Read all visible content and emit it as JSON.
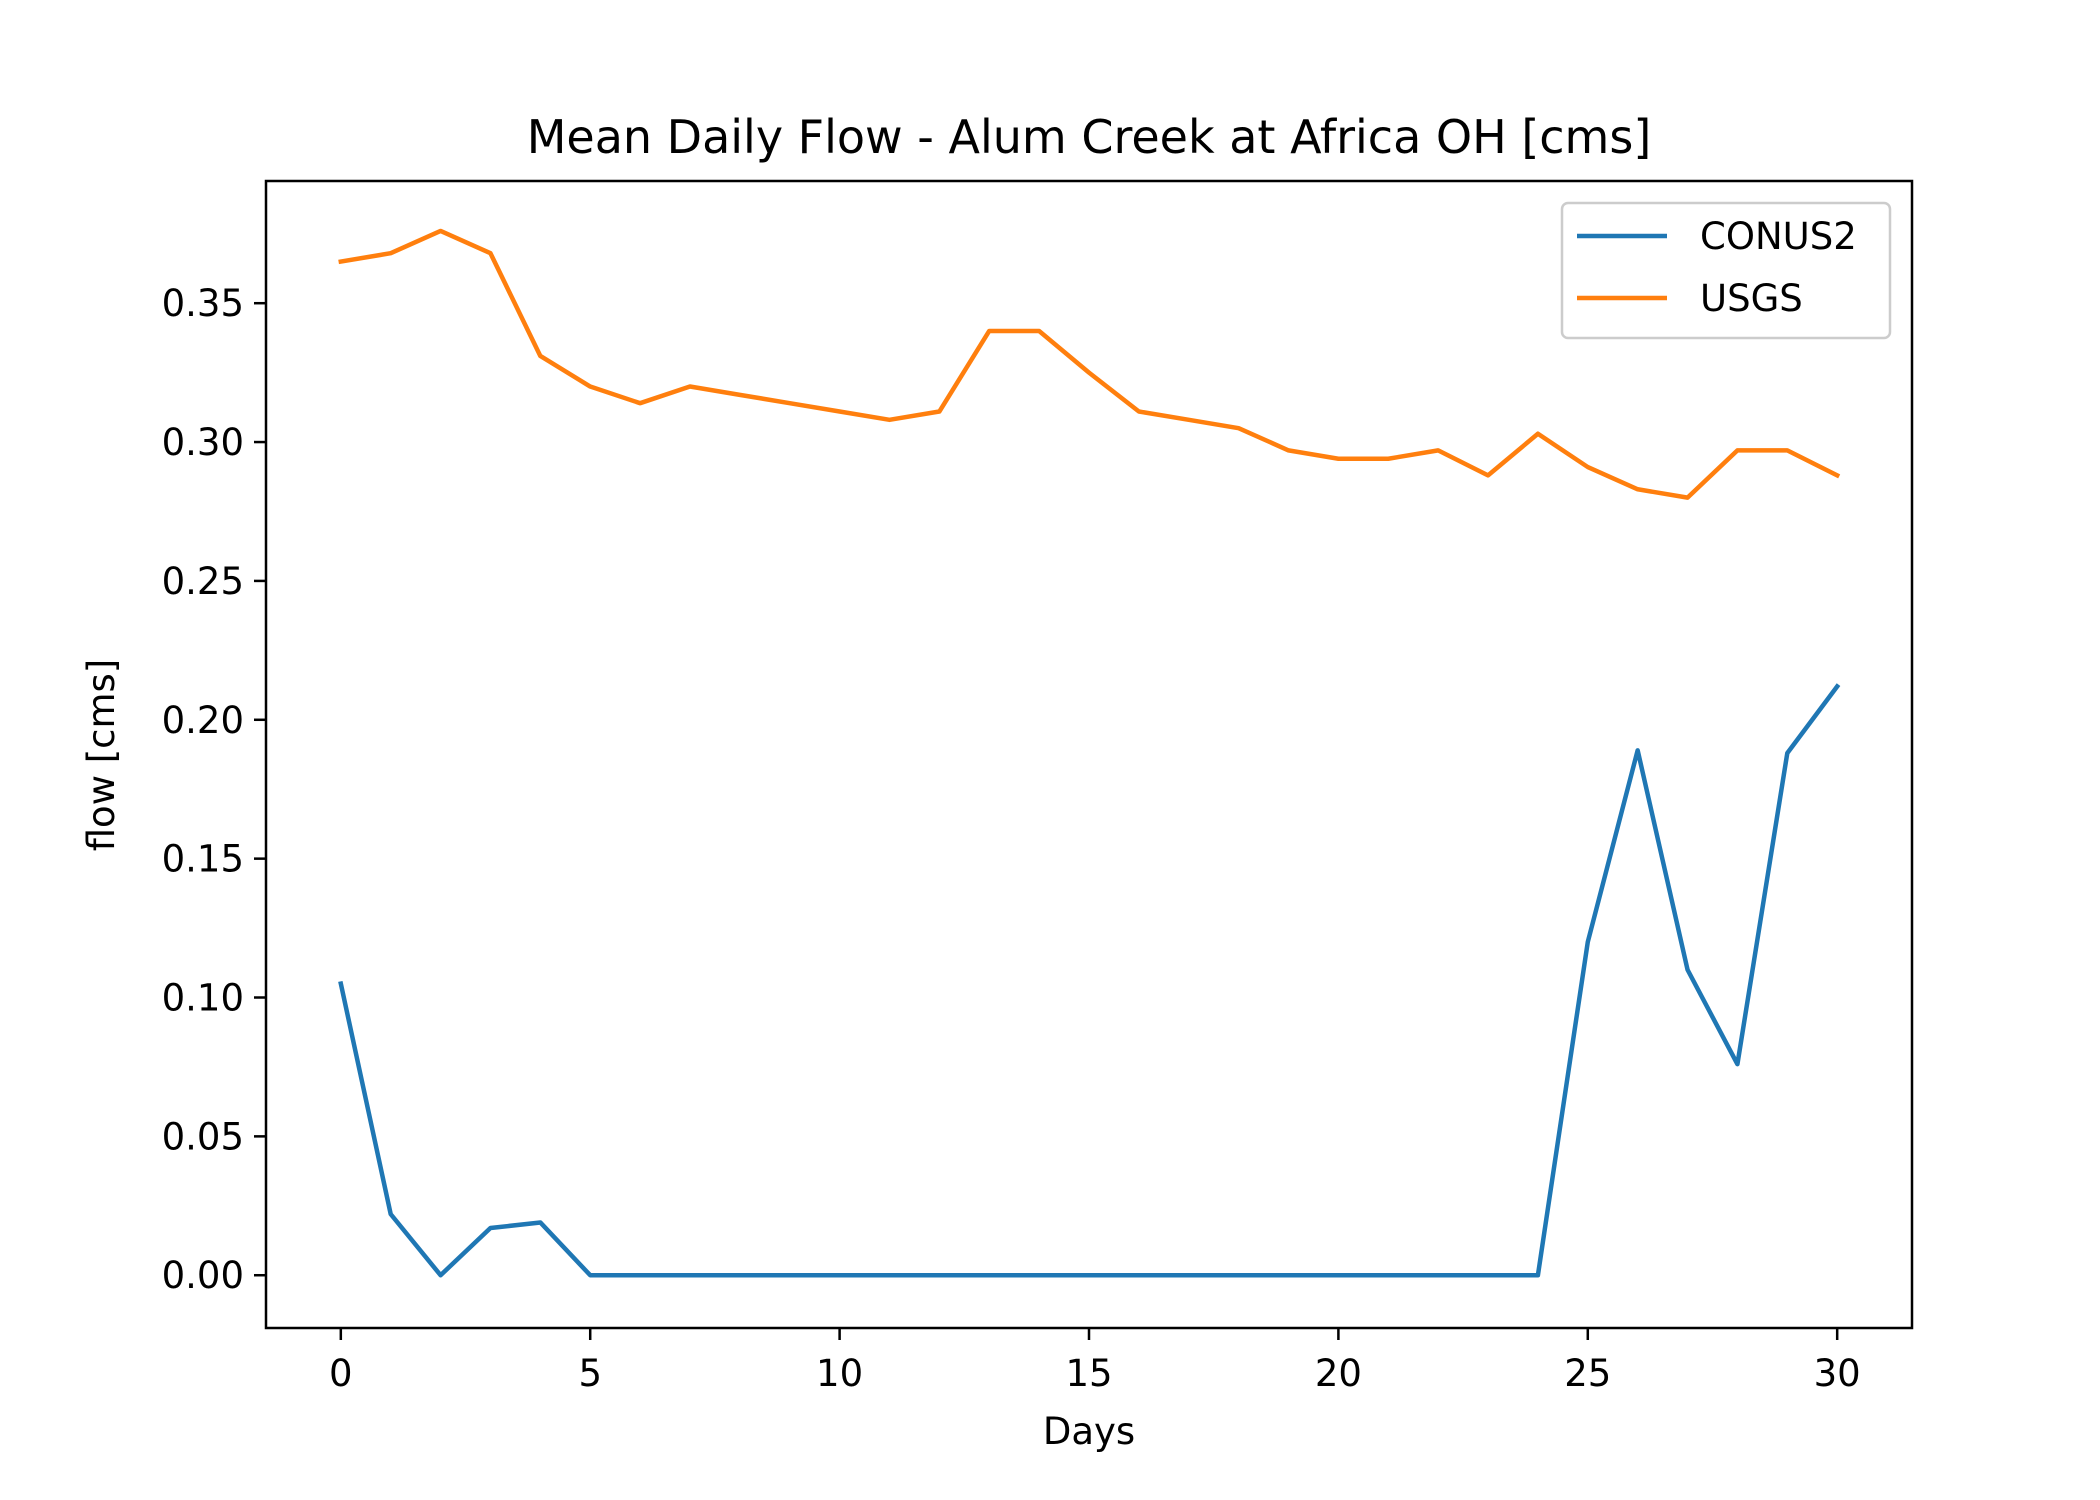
{
  "chart_data": {
    "type": "line",
    "title": "Mean Daily Flow - Alum Creek at Africa OH [cms]",
    "xlabel": "Days",
    "ylabel": "flow [cms]",
    "xlim": [
      -1.5,
      31.5
    ],
    "ylim": [
      -0.019,
      0.394
    ],
    "xticks": [
      0,
      5,
      10,
      15,
      20,
      25,
      30
    ],
    "yticks": [
      0.0,
      0.05,
      0.1,
      0.15,
      0.2,
      0.25,
      0.3,
      0.35
    ],
    "xtick_labels": [
      "0",
      "5",
      "10",
      "15",
      "20",
      "25",
      "30"
    ],
    "ytick_labels": [
      "0.00",
      "0.05",
      "0.10",
      "0.15",
      "0.20",
      "0.25",
      "0.30",
      "0.35"
    ],
    "grid": false,
    "legend_position": "top-right",
    "x": [
      0,
      1,
      2,
      3,
      4,
      5,
      6,
      7,
      8,
      9,
      10,
      11,
      12,
      13,
      14,
      15,
      16,
      17,
      18,
      19,
      20,
      21,
      22,
      23,
      24,
      25,
      26,
      27,
      28,
      29,
      30
    ],
    "series": [
      {
        "name": "CONUS2",
        "color": "#1f77b4",
        "values": [
          0.105,
          0.022,
          0.0,
          0.017,
          0.019,
          0.0,
          0.0,
          0.0,
          0.0,
          0.0,
          0.0,
          0.0,
          0.0,
          0.0,
          0.0,
          0.0,
          0.0,
          0.0,
          0.0,
          0.0,
          0.0,
          0.0,
          0.0,
          0.0,
          0.0,
          0.12,
          0.189,
          0.11,
          0.076,
          0.188,
          0.212
        ]
      },
      {
        "name": "USGS",
        "color": "#ff7f0e",
        "values": [
          0.365,
          0.368,
          0.376,
          0.368,
          0.331,
          0.32,
          0.314,
          0.32,
          0.317,
          0.314,
          0.311,
          0.308,
          0.311,
          0.34,
          0.34,
          0.325,
          0.311,
          0.308,
          0.305,
          0.297,
          0.294,
          0.294,
          0.297,
          0.288,
          0.303,
          0.291,
          0.283,
          0.28,
          0.297,
          0.297,
          0.288
        ]
      }
    ]
  }
}
